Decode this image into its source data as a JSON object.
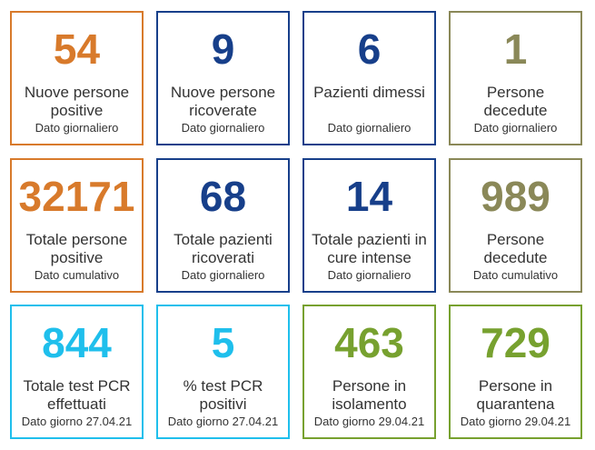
{
  "colors": {
    "orange": "#d87a2b",
    "navy": "#173f8a",
    "olive": "#8a8858",
    "cyan": "#1fbfec",
    "green": "#77a12f"
  },
  "cards": [
    {
      "value": "54",
      "label": "Nuove persone positive",
      "sub": "Dato giornaliero",
      "color": "orange"
    },
    {
      "value": "9",
      "label": "Nuove persone ricoverate",
      "sub": "Dato giornaliero",
      "color": "navy"
    },
    {
      "value": "6",
      "label": "Pazienti dimessi",
      "sub": "Dato giornaliero",
      "color": "navy"
    },
    {
      "value": "1",
      "label": "Persone decedute",
      "sub": "Dato giornaliero",
      "color": "olive"
    },
    {
      "value": "32171",
      "label": "Totale persone positive",
      "sub": "Dato cumulativo",
      "color": "orange"
    },
    {
      "value": "68",
      "label": "Totale pazienti ricoverati",
      "sub": "Dato giornaliero",
      "color": "navy"
    },
    {
      "value": "14",
      "label": "Totale pazienti in cure intense",
      "sub": "Dato giornaliero",
      "color": "navy"
    },
    {
      "value": "989",
      "label": "Persone decedute",
      "sub": "Dato cumulativo",
      "color": "olive"
    },
    {
      "value": "844",
      "label": "Totale test PCR effettuati",
      "sub": "Dato giorno 27.04.21",
      "color": "cyan"
    },
    {
      "value": "5",
      "label": "% test PCR positivi",
      "sub": "Dato giorno 27.04.21",
      "color": "cyan"
    },
    {
      "value": "463",
      "label": "Persone in isolamento",
      "sub": "Dato giorno 29.04.21",
      "color": "green"
    },
    {
      "value": "729",
      "label": "Persone in quarantena",
      "sub": "Dato giorno 29.04.21",
      "color": "green"
    }
  ]
}
